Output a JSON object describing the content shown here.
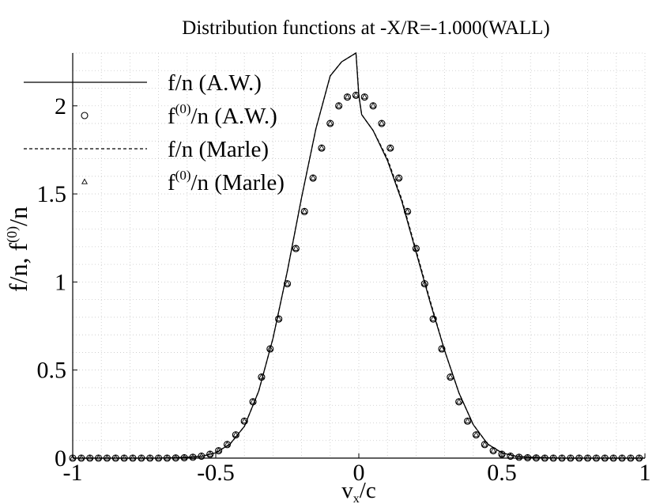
{
  "chart_data": {
    "type": "line",
    "title": "Distribution functions at -X/R=-1.000(WALL)",
    "xlabel": {
      "main": "v",
      "sub": "x",
      "tail": "/c"
    },
    "ylabel": {
      "pre": "f/n, f",
      "sup": "(0)",
      "post": "/n"
    },
    "xlim": [
      -1,
      1
    ],
    "ylim": [
      0,
      2.3
    ],
    "xticks": [
      -1,
      -0.5,
      0,
      0.5,
      1
    ],
    "xtick_labels": [
      "-1",
      "-0.5",
      "0",
      "0.5",
      "1"
    ],
    "yticks": [
      0,
      0.5,
      1,
      1.5,
      2
    ],
    "ytick_labels": [
      "0",
      "0.5",
      "1",
      "1.5",
      "2"
    ],
    "grid": true,
    "legend_position": "top-left",
    "legend": [
      {
        "pre": "f/n (A.W.)",
        "sup": "",
        "post": "",
        "style": "solid-line"
      },
      {
        "pre": "f",
        "sup": "(0)",
        "post": "/n (A.W.)",
        "style": "circle-marker"
      },
      {
        "pre": "f/n (Marle)",
        "sup": "",
        "post": "",
        "style": "dashed-line"
      },
      {
        "pre": "f",
        "sup": "(0)",
        "post": "/n (Marle)",
        "style": "triangle-marker"
      }
    ],
    "series": [
      {
        "name": "f/n (A.W.)",
        "style": "solid",
        "x": [
          -1,
          -0.7,
          -0.6,
          -0.55,
          -0.5,
          -0.45,
          -0.4,
          -0.35,
          -0.3,
          -0.25,
          -0.2,
          -0.15,
          -0.1,
          -0.06,
          -0.03,
          -0.01,
          0,
          0.01,
          0.05,
          0.1,
          0.15,
          0.2,
          0.25,
          0.3,
          0.35,
          0.4,
          0.45,
          0.5,
          0.55,
          0.6,
          0.7,
          1
        ],
        "y": [
          0,
          0,
          0.005,
          0.01,
          0.03,
          0.08,
          0.18,
          0.38,
          0.68,
          1.06,
          1.48,
          1.87,
          2.17,
          2.25,
          2.28,
          2.3,
          2.06,
          1.95,
          1.86,
          1.69,
          1.46,
          1.17,
          0.88,
          0.61,
          0.37,
          0.19,
          0.08,
          0.03,
          0.01,
          0.005,
          0,
          0
        ]
      },
      {
        "name": "f/n (Marle)",
        "style": "dashed",
        "x": [
          -1,
          -0.7,
          -0.6,
          -0.55,
          -0.5,
          -0.45,
          -0.4,
          -0.35,
          -0.3,
          -0.25,
          -0.2,
          -0.15,
          -0.1,
          -0.06,
          -0.03,
          -0.01,
          0,
          0.01,
          0.05,
          0.1,
          0.15,
          0.2,
          0.25,
          0.3,
          0.35,
          0.4,
          0.45,
          0.5,
          0.55,
          0.6,
          0.7,
          1
        ],
        "y": [
          0,
          0,
          0.005,
          0.01,
          0.03,
          0.08,
          0.18,
          0.38,
          0.68,
          1.06,
          1.48,
          1.87,
          2.17,
          2.25,
          2.28,
          2.3,
          2.06,
          1.95,
          1.86,
          1.7,
          1.47,
          1.18,
          0.89,
          0.61,
          0.37,
          0.19,
          0.08,
          0.03,
          0.01,
          0.005,
          0,
          0
        ]
      },
      {
        "name": "f(0)/n (A.W.)",
        "style": "circle",
        "x": [
          -1,
          -0.97,
          -0.94,
          -0.91,
          -0.88,
          -0.85,
          -0.82,
          -0.79,
          -0.76,
          -0.73,
          -0.7,
          -0.67,
          -0.64,
          -0.61,
          -0.58,
          -0.55,
          -0.52,
          -0.49,
          -0.46,
          -0.43,
          -0.4,
          -0.37,
          -0.34,
          -0.31,
          -0.28,
          -0.25,
          -0.22,
          -0.19,
          -0.16,
          -0.13,
          -0.1,
          -0.07,
          -0.04,
          -0.01,
          0.02,
          0.05,
          0.08,
          0.11,
          0.14,
          0.17,
          0.2,
          0.23,
          0.26,
          0.29,
          0.32,
          0.35,
          0.38,
          0.41,
          0.44,
          0.47,
          0.5,
          0.53,
          0.56,
          0.59,
          0.62,
          0.65,
          0.68,
          0.71,
          0.74,
          0.77,
          0.8,
          0.83,
          0.86,
          0.89,
          0.92,
          0.95,
          0.98
        ],
        "y": [
          0,
          0,
          0,
          0,
          0,
          0,
          0,
          0,
          0,
          0,
          0,
          0,
          0.001,
          0.002,
          0.005,
          0.011,
          0.022,
          0.042,
          0.077,
          0.132,
          0.21,
          0.32,
          0.46,
          0.62,
          0.79,
          0.99,
          1.19,
          1.4,
          1.59,
          1.76,
          1.9,
          2.0,
          2.05,
          2.06,
          2.05,
          2.0,
          1.9,
          1.76,
          1.59,
          1.4,
          1.19,
          0.99,
          0.79,
          0.62,
          0.46,
          0.32,
          0.21,
          0.132,
          0.077,
          0.042,
          0.022,
          0.011,
          0.005,
          0.002,
          0.001,
          0,
          0,
          0,
          0,
          0,
          0,
          0,
          0,
          0,
          0,
          0,
          0
        ]
      },
      {
        "name": "f(0)/n (Marle)",
        "style": "triangle",
        "x": [
          -1,
          -0.97,
          -0.94,
          -0.91,
          -0.88,
          -0.85,
          -0.82,
          -0.79,
          -0.76,
          -0.73,
          -0.7,
          -0.67,
          -0.64,
          -0.61,
          -0.58,
          -0.55,
          -0.52,
          -0.49,
          -0.46,
          -0.43,
          -0.4,
          -0.37,
          -0.34,
          -0.31,
          -0.28,
          -0.25,
          -0.22,
          -0.19,
          -0.16,
          -0.13,
          -0.1,
          -0.07,
          -0.04,
          -0.01,
          0.02,
          0.05,
          0.08,
          0.11,
          0.14,
          0.17,
          0.2,
          0.23,
          0.26,
          0.29,
          0.32,
          0.35,
          0.38,
          0.41,
          0.44,
          0.47,
          0.5,
          0.53,
          0.56,
          0.59,
          0.62,
          0.65,
          0.68,
          0.71,
          0.74,
          0.77,
          0.8,
          0.83,
          0.86,
          0.89,
          0.92,
          0.95,
          0.98
        ],
        "y": [
          0,
          0,
          0,
          0,
          0,
          0,
          0,
          0,
          0,
          0,
          0,
          0,
          0.001,
          0.002,
          0.005,
          0.011,
          0.022,
          0.042,
          0.077,
          0.132,
          0.21,
          0.32,
          0.46,
          0.62,
          0.79,
          0.99,
          1.19,
          1.4,
          1.59,
          1.76,
          1.9,
          2.0,
          2.05,
          2.06,
          2.05,
          2.0,
          1.9,
          1.76,
          1.59,
          1.4,
          1.19,
          0.99,
          0.79,
          0.62,
          0.46,
          0.32,
          0.21,
          0.132,
          0.077,
          0.042,
          0.022,
          0.011,
          0.005,
          0.002,
          0.001,
          0,
          0,
          0,
          0,
          0,
          0,
          0,
          0,
          0,
          0,
          0,
          0
        ]
      }
    ]
  }
}
